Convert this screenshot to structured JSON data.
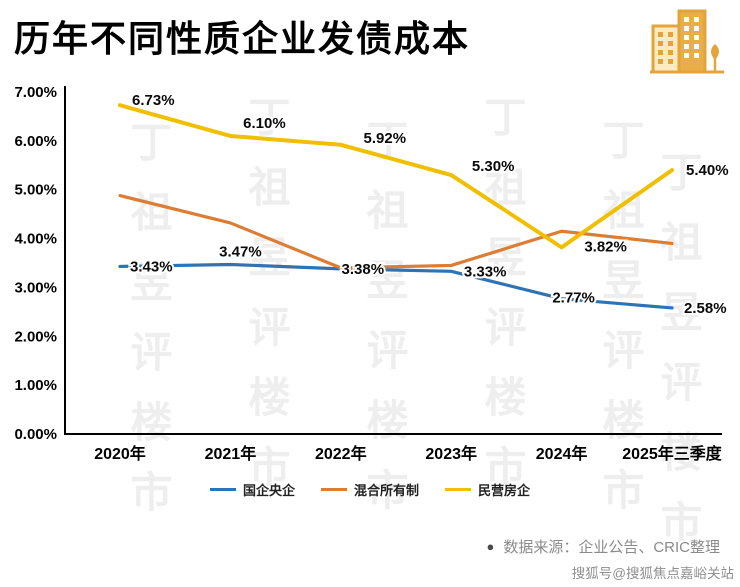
{
  "header": {
    "title": "历年不同性质企业发债成本"
  },
  "chart_data": {
    "type": "line",
    "title": "历年不同性质企业发债成本",
    "categories": [
      "2020年",
      "2021年",
      "2022年",
      "2023年",
      "2024年",
      "2025年三季度"
    ],
    "y_ticks": [
      "0.00%",
      "1.00%",
      "2.00%",
      "3.00%",
      "4.00%",
      "5.00%",
      "6.00%",
      "7.00%"
    ],
    "ylim": [
      0,
      7
    ],
    "grid": false,
    "legend_position": "bottom",
    "series": [
      {
        "name": "国企央企",
        "color": "#2E74B5",
        "values": [
          3.43,
          3.47,
          3.38,
          3.33,
          2.77,
          2.58
        ],
        "labels": [
          "3.43%",
          "3.47%",
          "3.38%",
          "3.33%",
          "2.77%",
          "2.58%"
        ]
      },
      {
        "name": "混合所有制",
        "color": "#DD7D33",
        "values": [
          4.88,
          4.32,
          3.4,
          3.45,
          4.15,
          3.9
        ],
        "labels": [
          "",
          "",
          "",
          "",
          "",
          ""
        ]
      },
      {
        "name": "民营房企",
        "color": "#EFBF00",
        "values": [
          6.73,
          6.1,
          5.92,
          5.3,
          3.82,
          5.4
        ],
        "labels": [
          "6.73%",
          "6.10%",
          "5.92%",
          "5.30%",
          "3.82%",
          "5.40%"
        ]
      }
    ]
  },
  "footer": {
    "source_bullet": "●",
    "source": "数据来源：企业公告、CRIC整理"
  },
  "watermarks": {
    "diagonal": "丁祖昱评楼市",
    "sohu": "搜狐号@搜狐焦点嘉峪关站"
  }
}
